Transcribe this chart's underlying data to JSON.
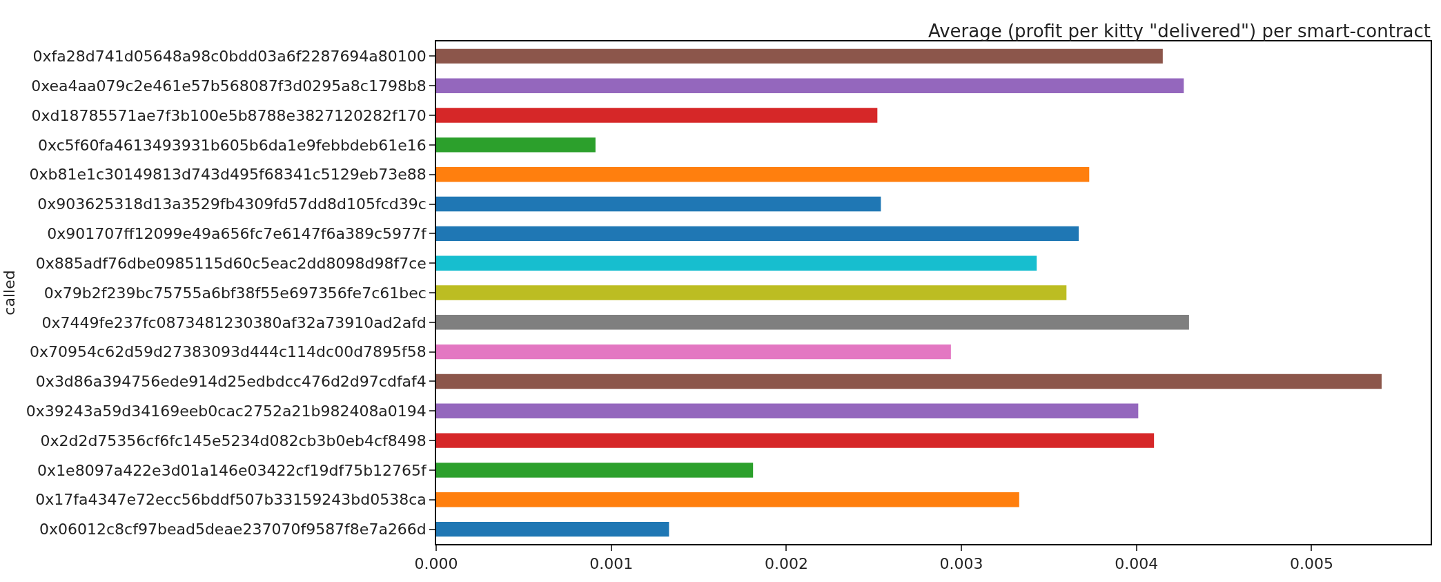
{
  "chart_data": {
    "type": "bar",
    "orientation": "horizontal",
    "title": "Average (profit per kitty \"delivered\") per smart-contract",
    "ylabel": "called",
    "categories": [
      "0xfa28d741d05648a98c0bdd03a6f2287694a80100",
      "0xea4aa079c2e461e57b568087f3d0295a8c1798b8",
      "0xd18785571ae7f3b100e5b8788e3827120282f170",
      "0xc5f60fa4613493931b605b6da1e9febbdeb61e16",
      "0xb81e1c30149813d743d495f68341c5129eb73e88",
      "0x903625318d13a3529fb4309fd57dd8d105fcd39c",
      "0x901707ff12099e49a656fc7e6147f6a389c5977f",
      "0x885adf76dbe0985115d60c5eac2dd8098d98f7ce",
      "0x79b2f239bc75755a6bf38f55e697356fe7c61bec",
      "0x7449fe237fc0873481230380af32a73910ad2afd",
      "0x70954c62d59d27383093d444c114dc00d7895f58",
      "0x3d86a394756ede914d25edbdcc476d2d97cdfaf4",
      "0x39243a59d34169eeb0cac2752a21b982408a0194",
      "0x2d2d75356cf6fc145e5234d082cb3b0eb4cf8498",
      "0x1e8097a422e3d01a146e03422cf19df75b12765f",
      "0x17fa4347e72ecc56bddf507b33159243bd0538ca",
      "0x06012c8cf97bead5deae237070f9587f8e7a266d"
    ],
    "values": [
      0.00415,
      0.00427,
      0.00252,
      0.00091,
      0.00373,
      0.00254,
      0.00367,
      0.00343,
      0.0036,
      0.0043,
      0.00294,
      0.0054,
      0.00401,
      0.0041,
      0.00181,
      0.00333,
      0.00133
    ],
    "colors": [
      "#8c564b",
      "#9467bd",
      "#d62728",
      "#2ca02c",
      "#ff7f0e",
      "#1f77b4",
      "#1f77b4",
      "#17becf",
      "#bcbd22",
      "#7f7f7f",
      "#e377c2",
      "#8c564b",
      "#9467bd",
      "#d62728",
      "#2ca02c",
      "#ff7f0e",
      "#1f77b4"
    ],
    "xlim": [
      0,
      0.00568
    ],
    "xticks": [
      {
        "value": 0,
        "label": "0.000"
      },
      {
        "value": 0.001,
        "label": "0.001"
      },
      {
        "value": 0.002,
        "label": "0.002"
      },
      {
        "value": 0.003,
        "label": "0.003"
      },
      {
        "value": 0.004,
        "label": "0.004"
      },
      {
        "value": 0.005,
        "label": "0.005"
      }
    ]
  }
}
